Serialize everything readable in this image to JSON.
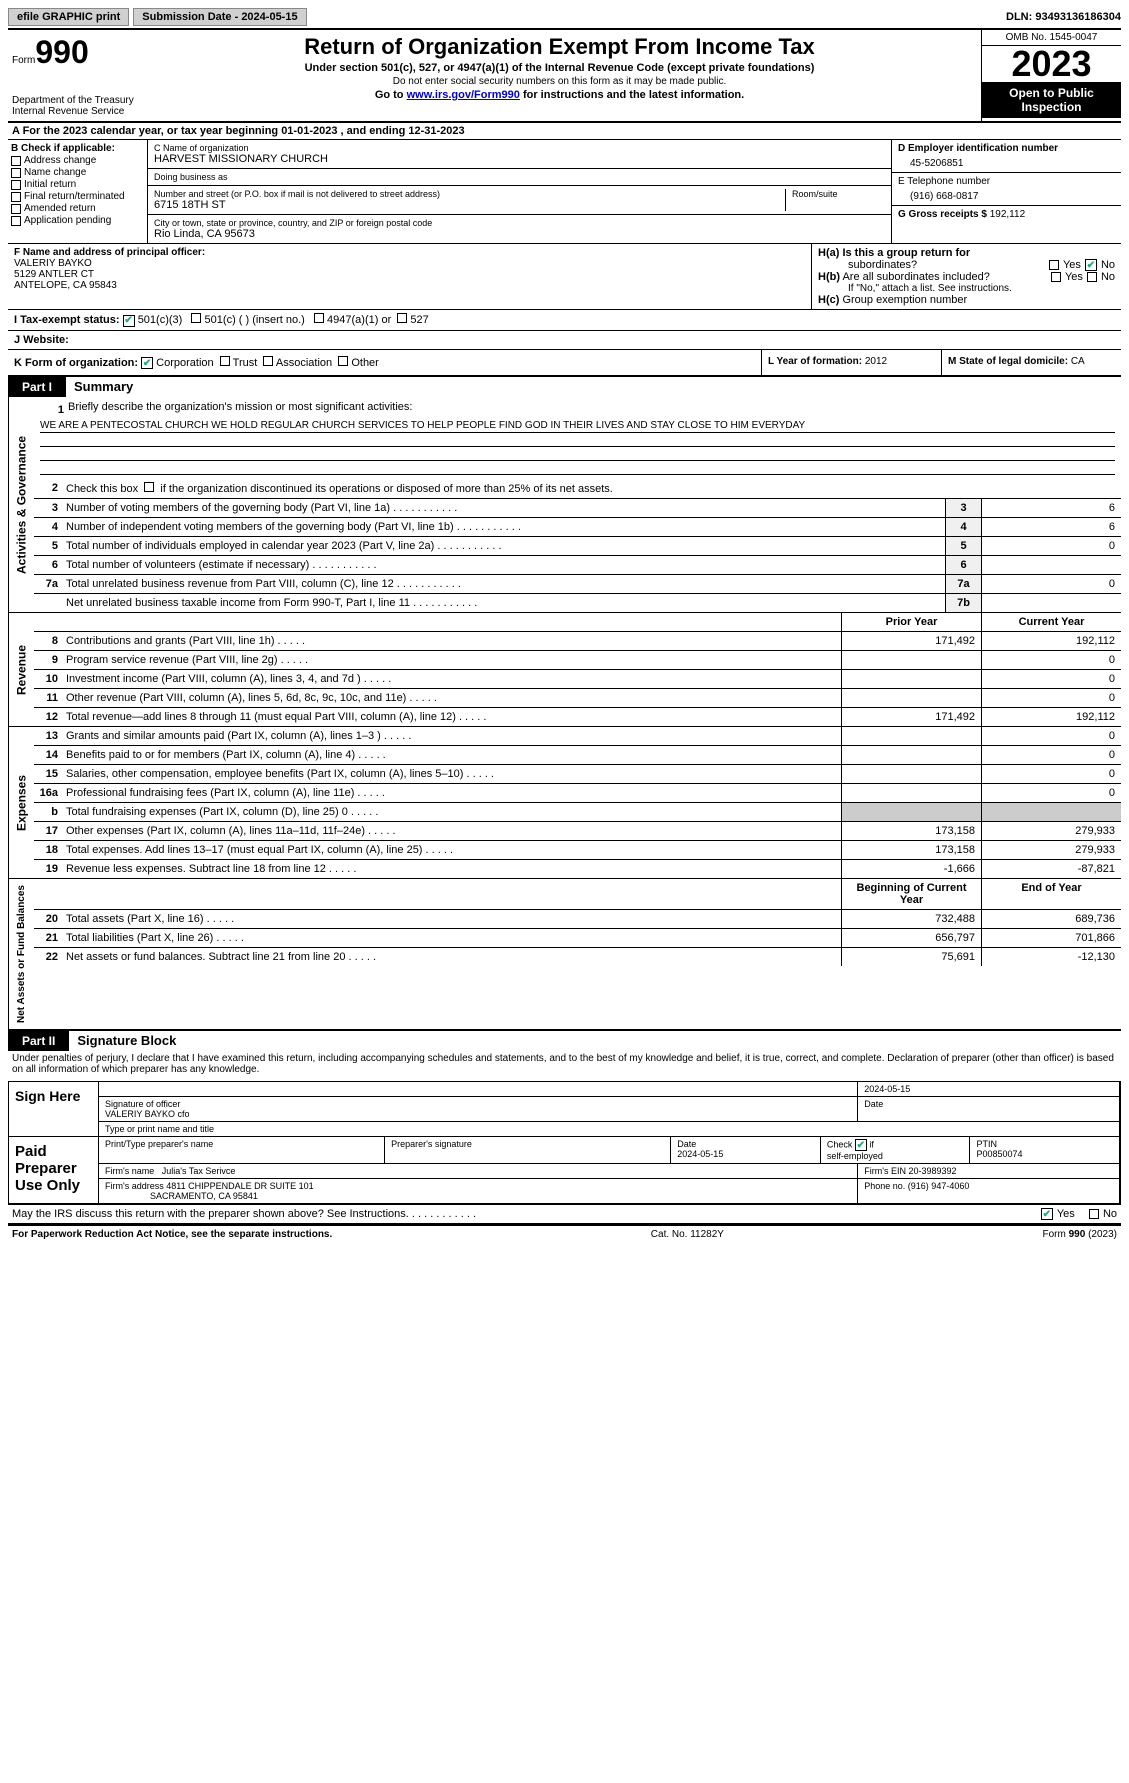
{
  "topbar": {
    "efile": "efile GRAPHIC print",
    "submission": "Submission Date - 2024-05-15",
    "dln": "DLN: 93493136186304"
  },
  "header": {
    "form_label": "Form",
    "form_num": "990",
    "dept": "Department of the Treasury",
    "irs": "Internal Revenue Service",
    "title": "Return of Organization Exempt From Income Tax",
    "sub1": "Under section 501(c), 527, or 4947(a)(1) of the Internal Revenue Code (except private foundations)",
    "sub2": "Do not enter social security numbers on this form as it may be made public.",
    "sub3_pre": "Go to ",
    "sub3_link": "www.irs.gov/Form990",
    "sub3_post": " for instructions and the latest information.",
    "omb": "OMB No. 1545-0047",
    "year": "2023",
    "inspection": "Open to Public Inspection"
  },
  "row_a": "A For the 2023 calendar year, or tax year beginning 01-01-2023    , and ending 12-31-2023",
  "box_b": {
    "hdr": "B Check if applicable:",
    "opts": [
      "Address change",
      "Name change",
      "Initial return",
      "Final return/terminated",
      "Amended return",
      "Application pending"
    ]
  },
  "box_c": {
    "name_lbl": "C Name of organization",
    "name": "HARVEST MISSIONARY CHURCH",
    "dba_lbl": "Doing business as",
    "dba": "",
    "addr_lbl": "Number and street (or P.O. box if mail is not delivered to street address)",
    "room_lbl": "Room/suite",
    "addr": "6715 18TH ST",
    "city_lbl": "City or town, state or province, country, and ZIP or foreign postal code",
    "city": "Rio Linda, CA  95673"
  },
  "box_d": {
    "ein_lbl": "D Employer identification number",
    "ein": "45-5206851",
    "phone_lbl": "E Telephone number",
    "phone": "(916) 668-0817",
    "gross_lbl": "G Gross receipts $",
    "gross": "192,112"
  },
  "box_f": {
    "lbl": "F  Name and address of principal officer:",
    "name": "VALERIY BAYKO",
    "addr1": "5129 ANTLER CT",
    "addr2": "ANTELOPE, CA  95843"
  },
  "box_h": {
    "a_lbl": "H(a)  Is this a group return for",
    "a_lbl2": "subordinates?",
    "b_lbl": "H(b)  Are all subordinates included?",
    "b_note": "If \"No,\" attach a list. See instructions.",
    "c_lbl": "H(c)  Group exemption number ",
    "yes": "Yes",
    "no": "No"
  },
  "box_i": {
    "lbl": "I    Tax-exempt status:",
    "o1": "501(c)(3)",
    "o2": "501(c) (  ) (insert no.)",
    "o3": "4947(a)(1) or",
    "o4": "527"
  },
  "box_j": {
    "lbl": "J    Website: "
  },
  "box_k": {
    "lbl": "K Form of organization:",
    "o1": "Corporation",
    "o2": "Trust",
    "o3": "Association",
    "o4": "Other"
  },
  "box_l": {
    "lbl": "L Year of formation: ",
    "val": "2012"
  },
  "box_m": {
    "lbl": "M State of legal domicile: ",
    "val": "CA"
  },
  "part1": {
    "hdr": "Part I",
    "title": "Summary",
    "vlabels": [
      "Activities & Governance",
      "Revenue",
      "Expenses",
      "Net Assets or Fund Balances"
    ],
    "l1_lbl": "Briefly describe the organization's mission or most significant activities:",
    "l1_txt": "WE ARE A PENTECOSTAL CHURCH WE HOLD REGULAR CHURCH SERVICES TO HELP PEOPLE FIND GOD IN THEIR LIVES AND STAY CLOSE TO HIM EVERYDAY",
    "l2": "Check this box       if the organization discontinued its operations or disposed of more than 25% of its net assets.",
    "lines_gov": [
      {
        "n": "3",
        "t": "Number of voting members of the governing body (Part VI, line 1a)",
        "box": "3",
        "v": "6"
      },
      {
        "n": "4",
        "t": "Number of independent voting members of the governing body (Part VI, line 1b)",
        "box": "4",
        "v": "6"
      },
      {
        "n": "5",
        "t": "Total number of individuals employed in calendar year 2023 (Part V, line 2a)",
        "box": "5",
        "v": "0"
      },
      {
        "n": "6",
        "t": "Total number of volunteers (estimate if necessary)",
        "box": "6",
        "v": ""
      },
      {
        "n": "7a",
        "t": "Total unrelated business revenue from Part VIII, column (C), line 12",
        "box": "7a",
        "v": "0"
      },
      {
        "n": "",
        "t": "Net unrelated business taxable income from Form 990-T, Part I, line 11",
        "box": "7b",
        "v": ""
      }
    ],
    "col_prior": "Prior Year",
    "col_current": "Current Year",
    "lines_rev": [
      {
        "n": "8",
        "t": "Contributions and grants (Part VIII, line 1h)",
        "p": "171,492",
        "c": "192,112"
      },
      {
        "n": "9",
        "t": "Program service revenue (Part VIII, line 2g)",
        "p": "",
        "c": "0"
      },
      {
        "n": "10",
        "t": "Investment income (Part VIII, column (A), lines 3, 4, and 7d )",
        "p": "",
        "c": "0"
      },
      {
        "n": "11",
        "t": "Other revenue (Part VIII, column (A), lines 5, 6d, 8c, 9c, 10c, and 11e)",
        "p": "",
        "c": "0"
      },
      {
        "n": "12",
        "t": "Total revenue—add lines 8 through 11 (must equal Part VIII, column (A), line 12)",
        "p": "171,492",
        "c": "192,112"
      }
    ],
    "lines_exp": [
      {
        "n": "13",
        "t": "Grants and similar amounts paid (Part IX, column (A), lines 1–3 )",
        "p": "",
        "c": "0"
      },
      {
        "n": "14",
        "t": "Benefits paid to or for members (Part IX, column (A), line 4)",
        "p": "",
        "c": "0"
      },
      {
        "n": "15",
        "t": "Salaries, other compensation, employee benefits (Part IX, column (A), lines 5–10)",
        "p": "",
        "c": "0"
      },
      {
        "n": "16a",
        "t": "Professional fundraising fees (Part IX, column (A), line 11e)",
        "p": "",
        "c": "0"
      },
      {
        "n": "b",
        "t": "Total fundraising expenses (Part IX, column (D), line 25) 0",
        "p": "shaded",
        "c": "shaded"
      },
      {
        "n": "17",
        "t": "Other expenses (Part IX, column (A), lines 11a–11d, 11f–24e)",
        "p": "173,158",
        "c": "279,933"
      },
      {
        "n": "18",
        "t": "Total expenses. Add lines 13–17 (must equal Part IX, column (A), line 25)",
        "p": "173,158",
        "c": "279,933"
      },
      {
        "n": "19",
        "t": "Revenue less expenses. Subtract line 18 from line 12",
        "p": "-1,666",
        "c": "-87,821"
      }
    ],
    "col_begin": "Beginning of Current Year",
    "col_end": "End of Year",
    "lines_net": [
      {
        "n": "20",
        "t": "Total assets (Part X, line 16)",
        "p": "732,488",
        "c": "689,736"
      },
      {
        "n": "21",
        "t": "Total liabilities (Part X, line 26)",
        "p": "656,797",
        "c": "701,866"
      },
      {
        "n": "22",
        "t": "Net assets or fund balances. Subtract line 21 from line 20",
        "p": "75,691",
        "c": "-12,130"
      }
    ]
  },
  "part2": {
    "hdr": "Part II",
    "title": "Signature Block",
    "decl": "Under penalties of perjury, I declare that I have examined this return, including accompanying schedules and statements, and to the best of my knowledge and belief, it is true, correct, and complete. Declaration of preparer (other than officer) is based on all information of which preparer has any knowledge.",
    "sign_here": "Sign Here",
    "sig_officer_lbl": "Signature of officer",
    "sig_officer": "VALERIY BAYKO  cfo",
    "sig_type_lbl": "Type or print name and title",
    "date_lbl": "Date",
    "date1": "2024-05-15",
    "paid": "Paid Preparer Use Only",
    "prep_name_lbl": "Print/Type preparer's name",
    "prep_sig_lbl": "Preparer's signature",
    "prep_date": "2024-05-15",
    "check_lbl": "Check        if self-employed",
    "ptin_lbl": "PTIN",
    "ptin": "P00850074",
    "firm_name_lbl": "Firm's name   ",
    "firm_name": "Julia's Tax Serivce",
    "firm_ein_lbl": "Firm's EIN  ",
    "firm_ein": "20-3989392",
    "firm_addr_lbl": "Firm's address ",
    "firm_addr1": "4811 CHIPPENDALE DR SUITE 101",
    "firm_addr2": "SACRAMENTO, CA  95841",
    "firm_phone_lbl": "Phone no. ",
    "firm_phone": "(916) 947-4060",
    "discuss": "May the IRS discuss this return with the preparer shown above? See Instructions."
  },
  "footer": {
    "left": "For Paperwork Reduction Act Notice, see the separate instructions.",
    "mid": "Cat. No. 11282Y",
    "right": "Form 990 (2023)"
  }
}
